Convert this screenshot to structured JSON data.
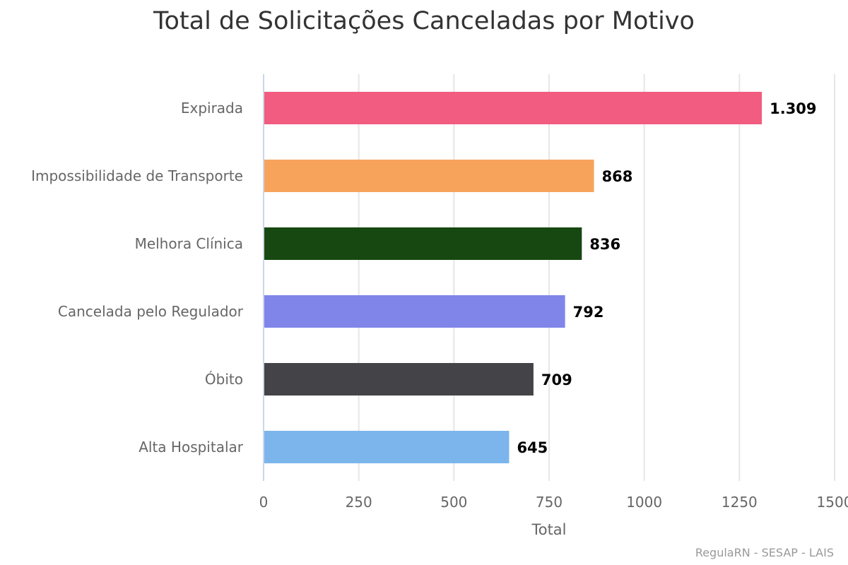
{
  "chart_data": {
    "type": "bar",
    "orientation": "horizontal",
    "title": "Total de Solicitações Canceladas por Motivo",
    "xlabel": "Total",
    "ylabel": "",
    "xlim": [
      0,
      1500
    ],
    "ticks": [
      "0",
      "250",
      "500",
      "750",
      "1000",
      "1250",
      "1500"
    ],
    "tick_values": [
      0,
      250,
      500,
      750,
      1000,
      1250,
      1500
    ],
    "grid": true,
    "categories": [
      "Expirada",
      "Impossibilidade de Transporte",
      "Melhora Clínica",
      "Cancelada pelo Regulador",
      "Óbito",
      "Alta Hospitalar"
    ],
    "values": [
      1309,
      868,
      836,
      792,
      709,
      645
    ],
    "value_labels": [
      "1.309",
      "868",
      "836",
      "792",
      "709",
      "645"
    ],
    "colors": [
      "#f15c80",
      "#f7a35c",
      "#174811",
      "#8085e9",
      "#434348",
      "#7cb5ec"
    ]
  },
  "credits": "RegulaRN - SESAP - LAIS"
}
